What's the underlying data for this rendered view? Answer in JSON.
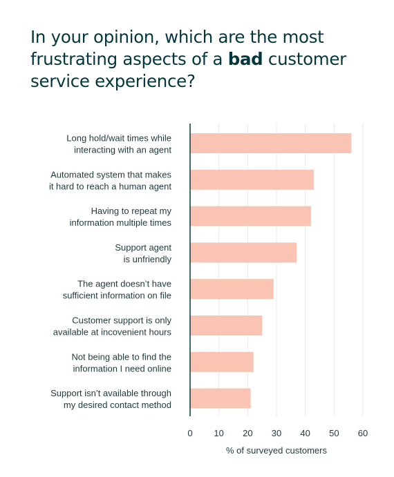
{
  "title": {
    "before": "In your opinion, which are the most frustrating aspects of a ",
    "bold": "bad",
    "after": " customer service experience?"
  },
  "chart_data": {
    "type": "bar",
    "orientation": "horizontal",
    "categories": [
      [
        "Long hold/wait times while",
        "interacting with an agent"
      ],
      [
        "Automated system that makes",
        "it hard to reach a human agent"
      ],
      [
        "Having to repeat my",
        "information multiple times"
      ],
      [
        "Support agent",
        "is unfriendly"
      ],
      [
        "The agent doesn’t have",
        "sufficient information on file"
      ],
      [
        "Customer support is only",
        "available at incovenient hours"
      ],
      [
        "Not being able to find the",
        "information I need online"
      ],
      [
        "Support isn’t available through",
        "my desired contact method"
      ]
    ],
    "values": [
      56,
      43,
      42,
      37,
      29,
      25,
      22,
      21
    ],
    "xlabel": "% of surveyed customers",
    "ylabel": "",
    "xlim": [
      0,
      60
    ],
    "xticks": [
      0,
      10,
      20,
      30,
      40,
      50,
      60
    ],
    "grid": "vertical",
    "colors": {
      "bar": "#f9c4b3",
      "axis": "#03363d",
      "grid": "#e4e8e8",
      "text": "#1f3a3e",
      "title": "#03363d"
    }
  }
}
